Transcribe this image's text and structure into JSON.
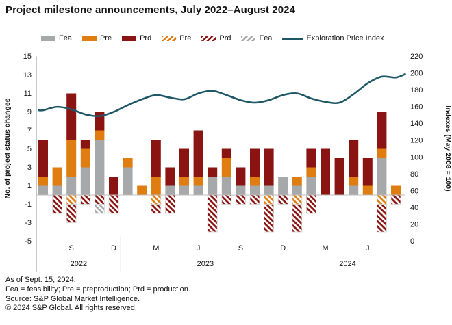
{
  "title": "Project milestone announcements, July 2022–August 2024",
  "colors": {
    "fea": "#a7a8a9",
    "pre": "#e07d10",
    "prd": "#8a1411",
    "line": "#1e5866",
    "axis": "#c8c8c8",
    "baseline": "#bdbdbd",
    "text": "#141414"
  },
  "legend": {
    "items": [
      {
        "label": "Fea",
        "type": "solid",
        "color_key": "fea"
      },
      {
        "label": "Pre",
        "type": "solid",
        "color_key": "pre"
      },
      {
        "label": "Prd",
        "type": "solid",
        "color_key": "prd"
      },
      {
        "label": "Pre",
        "type": "hatch",
        "color_key": "pre"
      },
      {
        "label": "Prd",
        "type": "hatch",
        "color_key": "prd"
      },
      {
        "label": "Fea",
        "type": "hatch",
        "color_key": "fea"
      },
      {
        "label": "Exploration Price Index",
        "type": "line",
        "color_key": "line"
      }
    ]
  },
  "chart_data": {
    "type": "bar",
    "subtype": "stacked-bars-with-line",
    "months": [
      "Jul 2022",
      "Aug 2022",
      "Sep 2022",
      "Oct 2022",
      "Nov 2022",
      "Dec 2022",
      "Jan 2023",
      "Feb 2023",
      "Mar 2023",
      "Apr 2023",
      "May 2023",
      "Jun 2023",
      "Jul 2023",
      "Aug 2023",
      "Sep 2023",
      "Oct 2023",
      "Nov 2023",
      "Dec 2023",
      "Jan 2024",
      "Feb 2024",
      "Mar 2024",
      "Apr 2024",
      "May 2024",
      "Jun 2024",
      "Jul 2024",
      "Aug 2024"
    ],
    "series_positive": [
      {
        "name": "Fea",
        "color_key": "fea",
        "values": [
          1,
          1,
          2,
          3,
          6,
          0,
          3,
          0,
          0,
          1,
          1,
          1,
          2,
          2,
          1,
          1,
          1,
          2,
          1,
          2,
          0,
          0,
          1,
          0,
          4,
          0
        ]
      },
      {
        "name": "Pre",
        "color_key": "pre",
        "values": [
          1,
          2,
          4,
          2,
          1,
          0,
          1,
          1,
          2,
          0,
          1,
          1,
          0,
          2,
          0,
          1,
          0,
          0,
          1,
          1,
          0,
          0,
          1,
          1,
          1,
          1
        ]
      },
      {
        "name": "Prd",
        "color_key": "prd",
        "values": [
          4,
          0,
          5,
          1,
          2,
          2,
          0,
          0,
          4,
          2,
          3,
          5,
          1,
          1,
          2,
          3,
          4,
          0,
          0,
          2,
          5,
          4,
          4,
          3,
          4,
          0
        ]
      }
    ],
    "series_negative": [
      {
        "name": "Pre",
        "color_key": "pre",
        "values": [
          0,
          0,
          -1,
          0,
          0,
          0,
          0,
          0,
          -1,
          0,
          0,
          0,
          0,
          0,
          0,
          0,
          -1,
          0,
          -1,
          0,
          0,
          0,
          0,
          0,
          -1,
          0
        ]
      },
      {
        "name": "Prd",
        "color_key": "prd",
        "values": [
          0,
          -2,
          -2,
          -1,
          -1,
          -2,
          0,
          0,
          -1,
          -2,
          0,
          0,
          -4,
          -1,
          -1,
          -1,
          -3,
          -1,
          -3,
          -2,
          0,
          0,
          0,
          0,
          -3,
          -1
        ]
      },
      {
        "name": "Fea",
        "color_key": "fea",
        "values": [
          0,
          0,
          0,
          0,
          -1,
          0,
          0,
          0,
          0,
          0,
          0,
          0,
          0,
          0,
          0,
          0,
          0,
          0,
          0,
          0,
          0,
          0,
          0,
          0,
          0,
          0
        ]
      }
    ],
    "line": {
      "name": "Exploration Price Index",
      "color_key": "line",
      "values": [
        156,
        160,
        157,
        151,
        149,
        154,
        162,
        169,
        174,
        171,
        169,
        176,
        179,
        174,
        168,
        165,
        168,
        174,
        176,
        170,
        166,
        165,
        175,
        188,
        196,
        195
      ],
      "edge_value": 199
    },
    "left_axis": {
      "title": "No. of project status changes",
      "min": -5,
      "max": 15,
      "ticks": [
        15,
        13,
        11,
        9,
        7,
        5,
        3,
        1,
        -1,
        -3,
        -5
      ]
    },
    "right_axis": {
      "title": "Indexes (May 2008 = 100)",
      "min": 0,
      "max": 220,
      "ticks": [
        220,
        200,
        180,
        160,
        140,
        120,
        100,
        80,
        60,
        40,
        20,
        0
      ]
    },
    "x_axis": {
      "month_labels": [
        {
          "label": "S",
          "index": 2
        },
        {
          "label": "D",
          "index": 5
        },
        {
          "label": "M",
          "index": 8
        },
        {
          "label": "J",
          "index": 11
        },
        {
          "label": "S",
          "index": 14
        },
        {
          "label": "D",
          "index": 17
        },
        {
          "label": "M",
          "index": 20
        },
        {
          "label": "J",
          "index": 23
        }
      ],
      "years": [
        {
          "label": "2022",
          "end_month_index": 5
        },
        {
          "label": "2023",
          "end_month_index": 17
        },
        {
          "label": "2024",
          "end_month_index": 25
        }
      ],
      "grid": false,
      "legend_position": "top"
    }
  },
  "footnotes": [
    "As of Sept. 15, 2024.",
    "Fea = feasibility; Pre = preproduction; Prd = production.",
    "Source: S&P Global Market Intelligence.",
    "© 2024 S&P Global. All rights reserved."
  ]
}
